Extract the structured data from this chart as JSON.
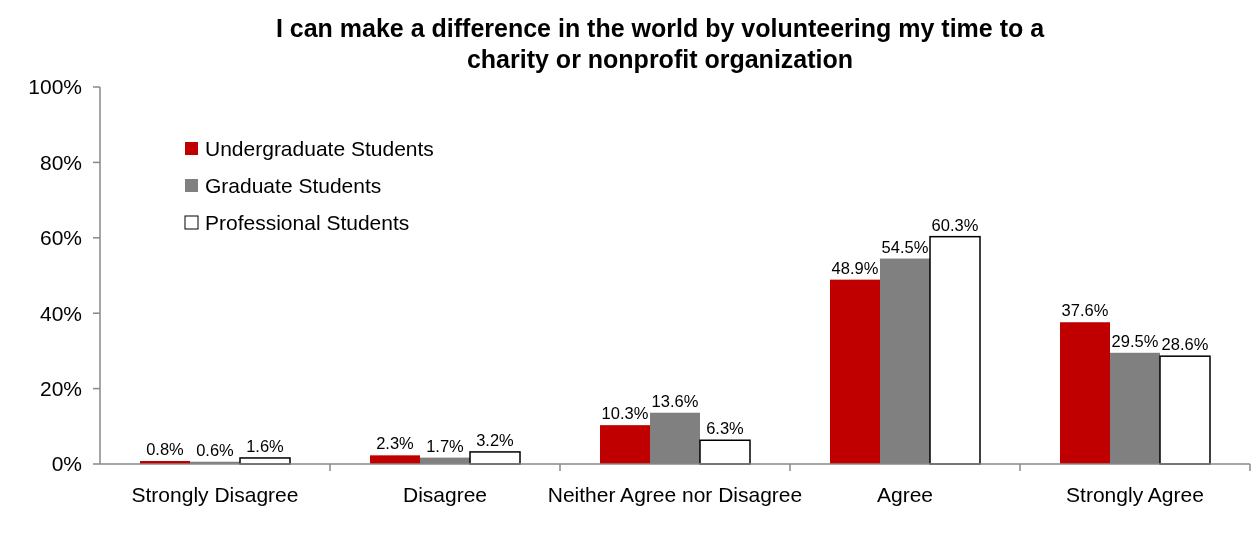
{
  "chart_data": {
    "type": "bar",
    "title": "I can make a difference in the world by volunteering my time to a\ncharity or nonprofit organization",
    "categories": [
      "Strongly Disagree",
      "Disagree",
      "Neither Agree nor Disagree",
      "Agree",
      "Strongly Agree"
    ],
    "series": [
      {
        "name": "Undergraduate Students",
        "color": "#c00000",
        "values": [
          0.8,
          2.3,
          10.3,
          48.9,
          37.6
        ],
        "value_labels": [
          "0.8%",
          "2.3%",
          "10.3%",
          "48.9%",
          "37.6%"
        ]
      },
      {
        "name": "Graduate Students",
        "color": "#808080",
        "values": [
          0.6,
          1.7,
          13.6,
          54.5,
          29.5
        ],
        "value_labels": [
          "0.6%",
          "1.7%",
          "13.6%",
          "54.5%",
          "29.5%"
        ]
      },
      {
        "name": "Professional Students",
        "color": "#ffffff",
        "values": [
          1.6,
          3.2,
          6.3,
          60.3,
          28.6
        ],
        "value_labels": [
          "1.6%",
          "3.2%",
          "6.3%",
          "60.3%",
          "28.6%"
        ]
      }
    ],
    "ylim": [
      0,
      100
    ],
    "yticks": [
      {
        "value": 0,
        "label": "0%"
      },
      {
        "value": 20,
        "label": "20%"
      },
      {
        "value": 40,
        "label": "40%"
      },
      {
        "value": 60,
        "label": "60%"
      },
      {
        "value": 80,
        "label": "80%"
      },
      {
        "value": 100,
        "label": "100%"
      }
    ],
    "grid": false,
    "legend": "top left"
  }
}
